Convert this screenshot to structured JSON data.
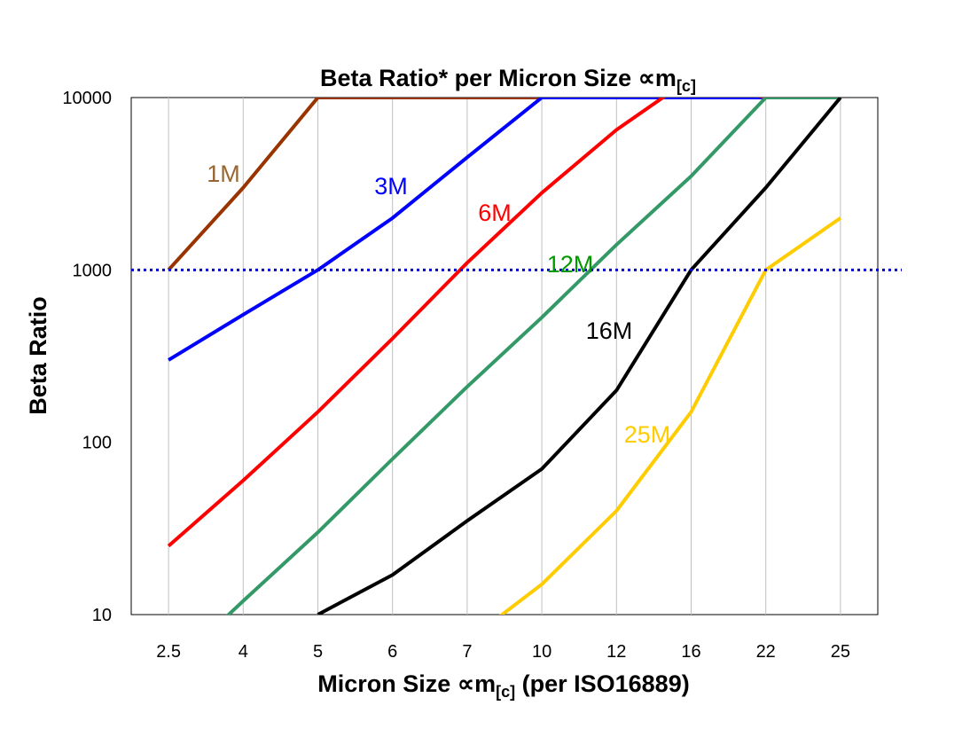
{
  "chart_data": {
    "type": "line",
    "title": "Beta Ratio* per Micron Size ∝m",
    "title_sub": "[c]",
    "xlabel": "Micron Size ∝m",
    "xlabel_sub": "[c]",
    "xlabel_suffix": " (per ISO16889)",
    "ylabel": "Beta Ratio",
    "yscale": "log",
    "ylim": [
      10,
      10000
    ],
    "yticks": [
      "10",
      "100",
      "1000",
      "10000"
    ],
    "categories": [
      "2.5",
      "4",
      "5",
      "6",
      "7",
      "10",
      "12",
      "16",
      "22",
      "25"
    ],
    "grid": "vertical",
    "reference_line": {
      "value": 1000,
      "color": "#0000CC",
      "style": "dotted"
    },
    "series": [
      {
        "name": "1M",
        "color": "#993300",
        "label_color": "#996633",
        "values": [
          1000,
          3000,
          10000,
          10000,
          10000,
          10000,
          10000,
          10000,
          10000,
          10000
        ]
      },
      {
        "name": "3M",
        "color": "#0000FF",
        "label_color": "#0000FF",
        "values": [
          300,
          550,
          1000,
          2000,
          4500,
          10000,
          10000,
          10000,
          10000,
          10000
        ]
      },
      {
        "name": "6M",
        "color": "#FF0000",
        "label_color": "#FF0000",
        "values": [
          25,
          60,
          150,
          400,
          1100,
          2800,
          6500,
          13000,
          10000,
          10000
        ]
      },
      {
        "name": "12M",
        "color": "#339966",
        "label_color": "#009900",
        "values": [
          4.7,
          12,
          30,
          80,
          210,
          530,
          1400,
          3500,
          10000,
          10000
        ]
      },
      {
        "name": "16M",
        "color": "#000000",
        "label_color": "#000000",
        "values": [
          null,
          null,
          10,
          17,
          35,
          70,
          200,
          1000,
          3000,
          10000
        ]
      },
      {
        "name": "25M",
        "color": "#FFCC00",
        "label_color": "#FFCC00",
        "values": [
          null,
          null,
          null,
          null,
          7,
          15,
          40,
          150,
          1000,
          2000
        ]
      }
    ]
  }
}
